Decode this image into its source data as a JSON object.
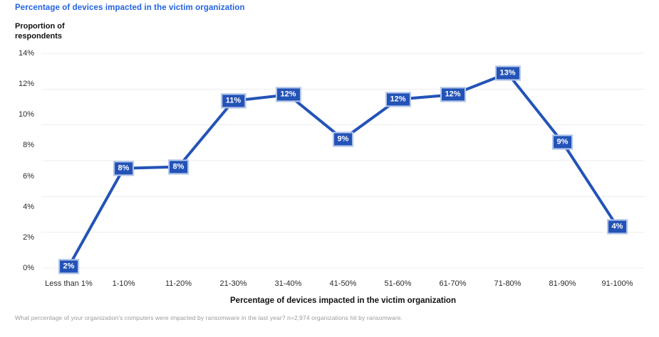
{
  "page": {
    "footnote": "What percentage of your organization's computers were impacted by ransomware in the last year? n=2,974 organizations hit by ransomware."
  },
  "chart_data": {
    "type": "line",
    "title": "Percentage of devices impacted in the victim organization",
    "ylabel": "Proportion of respondents",
    "xlabel": "Percentage of devices impacted in the victim organization",
    "categories": [
      "Less than 1%",
      "1-10%",
      "11-20%",
      "21-30%",
      "31-40%",
      "41-50%",
      "51-60%",
      "61-70%",
      "71-80%",
      "81-90%",
      "91-100%"
    ],
    "values": [
      2,
      8,
      8,
      11,
      12,
      9,
      12,
      12,
      13,
      9,
      4
    ],
    "data_labels": [
      "2%",
      "8%",
      "8%",
      "11%",
      "12%",
      "9%",
      "12%",
      "12%",
      "13%",
      "9%",
      "4%"
    ],
    "plotted_values_estimated": [
      0.1,
      6.5,
      6.6,
      10.9,
      11.3,
      8.4,
      11.0,
      11.3,
      12.7,
      8.2,
      2.7
    ],
    "y_ticks": [
      "14%",
      "12%",
      "10%",
      "8%",
      "6%",
      "4%",
      "2%",
      "0%"
    ],
    "ylim": [
      0,
      14
    ],
    "grid": "horizontal",
    "gridline_count": 7,
    "legend": "none",
    "colors": {
      "title": "#2363e2",
      "line": "#2353b7",
      "label_bg": "#2353b7",
      "label_border": "#b5c8ea",
      "label_text": "#ffffff",
      "grid": "#ededed",
      "axis_text": "#2b2b2b",
      "footnote": "#9b9b9b"
    }
  }
}
